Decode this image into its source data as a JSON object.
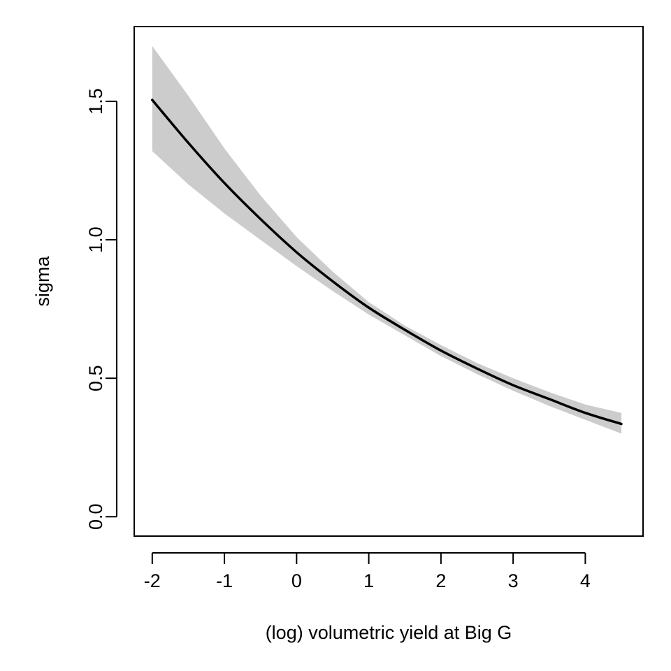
{
  "chart_data": {
    "type": "line",
    "title": "",
    "xlabel": "(log) volumetric yield at Big G",
    "ylabel": "sigma",
    "xlim": [
      -2.25,
      4.8
    ],
    "ylim": [
      -0.07,
      1.77
    ],
    "x_ticks": [
      -2,
      -1,
      0,
      1,
      2,
      3,
      4
    ],
    "x_tick_labels": [
      "-2",
      "-1",
      "0",
      "1",
      "2",
      "3",
      "4"
    ],
    "y_ticks": [
      0.0,
      0.5,
      1.0,
      1.5
    ],
    "y_tick_labels": [
      "0.0",
      "0.5",
      "1.0",
      "1.5"
    ],
    "grid": false,
    "legend": "none",
    "series": [
      {
        "x": [
          -2.0,
          -1.5,
          -1.0,
          -0.5,
          0.0,
          0.5,
          1.0,
          1.5,
          2.0,
          2.5,
          3.0,
          3.5,
          4.0,
          4.5
        ],
        "y": [
          1.505,
          1.35,
          1.205,
          1.075,
          0.955,
          0.85,
          0.755,
          0.675,
          0.6,
          0.535,
          0.475,
          0.425,
          0.375,
          0.335
        ],
        "lower": [
          1.32,
          1.2,
          1.095,
          1.0,
          0.905,
          0.815,
          0.73,
          0.655,
          0.58,
          0.515,
          0.455,
          0.4,
          0.35,
          0.3
        ],
        "upper": [
          1.7,
          1.52,
          1.33,
          1.16,
          1.01,
          0.885,
          0.775,
          0.69,
          0.62,
          0.555,
          0.5,
          0.45,
          0.405,
          0.375
        ]
      }
    ],
    "colors": {
      "line": "#000000",
      "band": "#cccccc",
      "axis": "#000000",
      "background": "#ffffff"
    }
  }
}
